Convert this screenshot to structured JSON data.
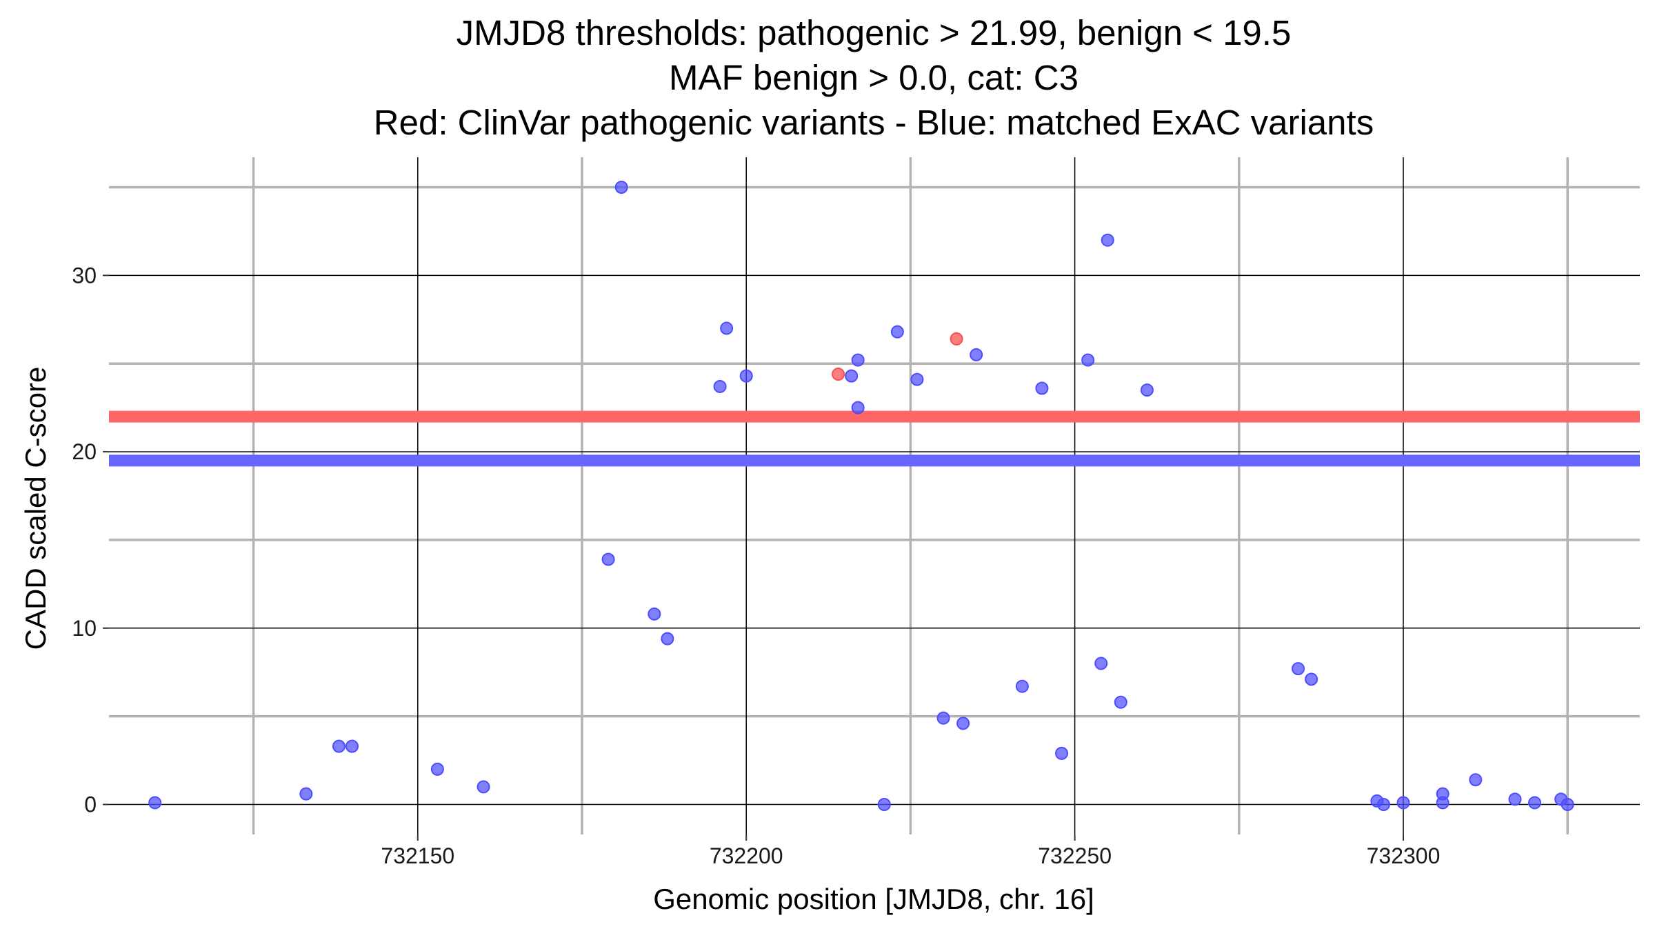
{
  "chart_data": {
    "type": "scatter",
    "title_lines": [
      "JMJD8 thresholds: pathogenic > 21.99, benign < 19.5",
      "MAF benign > 0.0, cat: C3",
      "Red: ClinVar pathogenic variants - Blue: matched ExAC variants"
    ],
    "xlabel": "Genomic position [JMJD8, chr. 16]",
    "ylabel": "CADD scaled C-score",
    "xlim": [
      732103,
      732336
    ],
    "ylim": [
      -1.7,
      36.7
    ],
    "x_ticks": [
      732150,
      732200,
      732250,
      732300
    ],
    "x_tick_labels": [
      "732150",
      "732200",
      "732250",
      "732300"
    ],
    "x_minor_ticks": [
      732125,
      732175,
      732225,
      732275,
      732325
    ],
    "y_ticks": [
      0,
      10,
      20,
      30
    ],
    "y_tick_labels": [
      "0",
      "10",
      "20",
      "30"
    ],
    "y_minor_ticks": [
      5,
      15,
      25,
      35
    ],
    "grid": true,
    "thresholds": [
      {
        "name": "pathogenic",
        "value": 21.99,
        "color": "#ff6666"
      },
      {
        "name": "benign",
        "value": 19.5,
        "color": "#6666ff"
      }
    ],
    "series": [
      {
        "color": "#ff4d4d",
        "points": [
          [
            732214,
            24.4
          ],
          [
            732232,
            26.4
          ]
        ]
      },
      {
        "color": "#4d4dff",
        "points": [
          [
            732110,
            0.1
          ],
          [
            732133,
            0.6
          ],
          [
            732138,
            3.3
          ],
          [
            732140,
            3.3
          ],
          [
            732153,
            2.0
          ],
          [
            732160,
            1.0
          ],
          [
            732179,
            13.9
          ],
          [
            732181,
            35.0
          ],
          [
            732186,
            10.8
          ],
          [
            732188,
            9.4
          ],
          [
            732196,
            23.7
          ],
          [
            732197,
            27.0
          ],
          [
            732200,
            24.3
          ],
          [
            732216,
            24.3
          ],
          [
            732217,
            25.2
          ],
          [
            732217,
            22.5
          ],
          [
            732221,
            0.0
          ],
          [
            732223,
            26.8
          ],
          [
            732226,
            24.1
          ],
          [
            732230,
            4.9
          ],
          [
            732233,
            4.6
          ],
          [
            732235,
            25.5
          ],
          [
            732242,
            6.7
          ],
          [
            732245,
            23.6
          ],
          [
            732248,
            2.9
          ],
          [
            732252,
            25.2
          ],
          [
            732254,
            8.0
          ],
          [
            732255,
            32.0
          ],
          [
            732257,
            5.8
          ],
          [
            732261,
            23.5
          ],
          [
            732284,
            7.7
          ],
          [
            732286,
            7.1
          ],
          [
            732296,
            0.2
          ],
          [
            732297,
            0.0
          ],
          [
            732300,
            0.1
          ],
          [
            732306,
            0.6
          ],
          [
            732306,
            0.1
          ],
          [
            732311,
            1.4
          ],
          [
            732317,
            0.3
          ],
          [
            732320,
            0.1
          ],
          [
            732324,
            0.3
          ],
          [
            732325,
            0.0
          ]
        ]
      }
    ]
  }
}
